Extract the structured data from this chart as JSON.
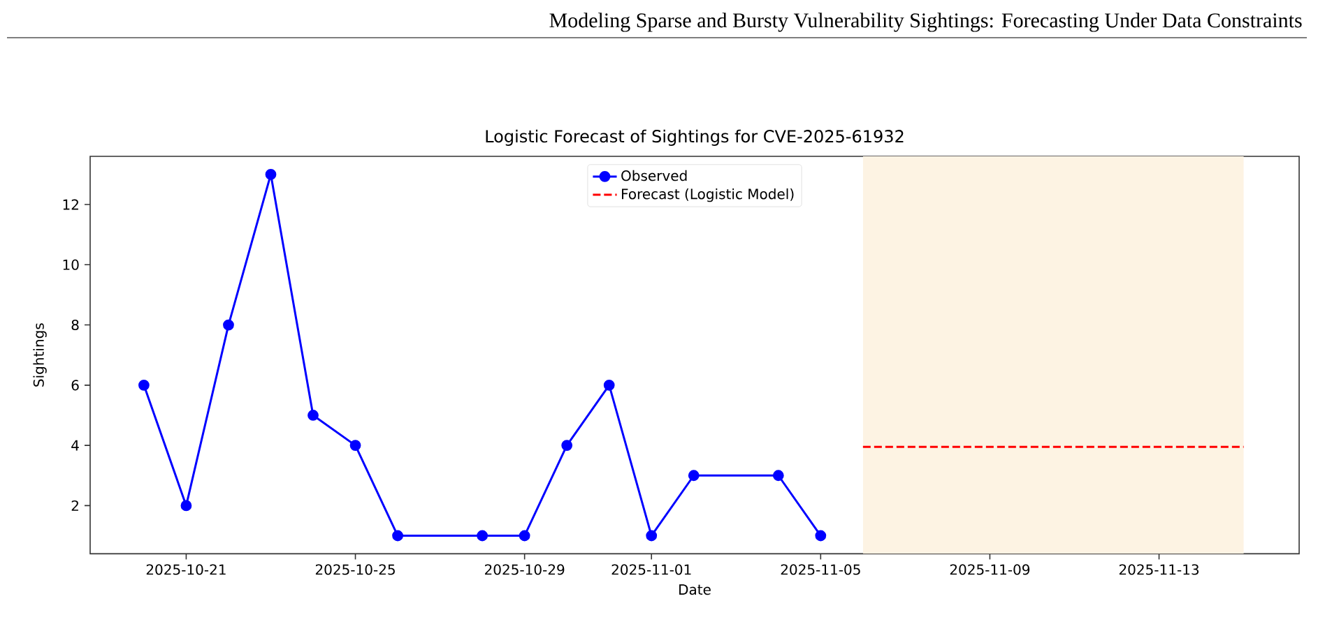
{
  "chart_data": {
    "type": "line",
    "title": "Logistic Forecast of Sightings for CVE-2025-61932",
    "xlabel": "Date",
    "ylabel": "Sightings",
    "annotations": [
      "Modeling Sparse and Bursty Vulnerability Sightings: Forecasting Under Data Constraints"
    ],
    "series": [
      {
        "name": "Observed",
        "color": "#0000ff",
        "marker": "circle",
        "line_style": "solid",
        "x": [
          "2025-10-20",
          "2025-10-21",
          "2025-10-22",
          "2025-10-23",
          "2025-10-24",
          "2025-10-25",
          "2025-10-26",
          "2025-10-28",
          "2025-10-29",
          "2025-10-30",
          "2025-10-31",
          "2025-11-01",
          "2025-11-02",
          "2025-11-04",
          "2025-11-05"
        ],
        "values": [
          6,
          2,
          8,
          13,
          5,
          4,
          1,
          1,
          1,
          4,
          6,
          1,
          3,
          3,
          1
        ]
      },
      {
        "name": "Forecast (Logistic Model)",
        "color": "#ff0000",
        "marker": "none",
        "line_style": "dashed",
        "x": [
          "2025-11-06",
          "2025-11-15"
        ],
        "values": [
          3.95,
          3.95
        ]
      }
    ],
    "bands": [
      {
        "axis": "x",
        "from": "2025-11-06",
        "to": "2025-11-15",
        "color": "#fdf3e3"
      }
    ],
    "xlim": [
      "2025-10-18T17:30",
      "2025-11-16T07:30"
    ],
    "xticks": [
      "2025-10-21",
      "2025-10-25",
      "2025-10-29",
      "2025-11-01",
      "2025-11-05",
      "2025-11-09",
      "2025-11-13"
    ],
    "ylim": [
      0.4,
      13.6
    ],
    "yticks": [
      2,
      4,
      6,
      8,
      10,
      12
    ],
    "legend": "top"
  }
}
